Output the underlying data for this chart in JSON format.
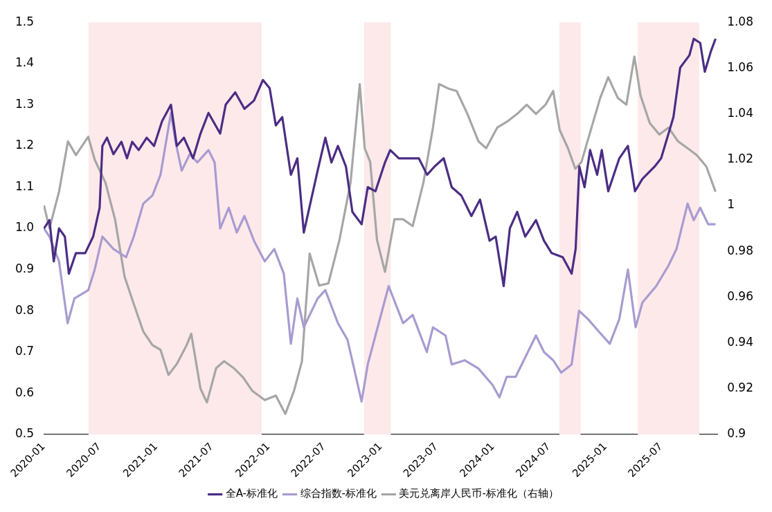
{
  "chart_data": {
    "type": "line",
    "xlim": [
      "2020-01-01",
      "2025-12-31"
    ],
    "xticks": [
      "2020-01",
      "2020-07",
      "2021-01",
      "2021-07",
      "2022-01",
      "2022-07",
      "2023-01",
      "2023-07",
      "2024-01",
      "2024-07",
      "2025-01",
      "2025-07"
    ],
    "ylim": [
      0.5,
      1.5
    ],
    "yticks": [
      0.5,
      0.6,
      0.7,
      0.8,
      0.9,
      {
        "value": 1,
        "label": "1.0"
      },
      1.1,
      1.2,
      1.3,
      1.4,
      1.5
    ],
    "y2lim": [
      0.9,
      1.08
    ],
    "y2ticks": [
      0.9,
      0.92,
      0.94,
      0.96,
      0.98,
      1,
      1.02,
      1.04,
      1.06,
      1.08
    ],
    "grid": false,
    "legend": "bottom",
    "bands": [
      {
        "axis": "x",
        "from": "2020-05-26",
        "to": "2021-12-10",
        "color": "#fde9ea"
      },
      {
        "axis": "x",
        "from": "2022-11-08",
        "to": "2023-02-03",
        "color": "#fde9ea"
      },
      {
        "axis": "x",
        "from": "2024-08-04",
        "to": "2024-10-12",
        "color": "#fde9ea"
      },
      {
        "axis": "x",
        "from": "2025-04-16",
        "to": "2025-11-02",
        "color": "#fde9ea"
      }
    ],
    "series": [
      {
        "name": "全A-标准化",
        "color": "#4b2d84",
        "x": [
          "2020-01-02",
          "2020-01-20",
          "2020-02-03",
          "2020-02-20",
          "2020-03-10",
          "2020-03-23",
          "2020-04-15",
          "2020-05-15",
          "2020-06-10",
          "2020-07-01",
          "2020-07-10",
          "2020-07-25",
          "2020-08-15",
          "2020-09-10",
          "2020-09-28",
          "2020-10-15",
          "2020-11-05",
          "2020-12-01",
          "2020-12-25",
          "2021-01-20",
          "2021-02-18",
          "2021-03-09",
          "2021-04-01",
          "2021-05-01",
          "2021-05-25",
          "2021-06-20",
          "2021-07-28",
          "2021-08-15",
          "2021-09-15",
          "2021-10-15",
          "2021-11-15",
          "2021-12-14",
          "2022-01-05",
          "2022-01-25",
          "2022-02-15",
          "2022-03-15",
          "2022-04-05",
          "2022-04-26",
          "2022-05-20",
          "2022-06-10",
          "2022-07-05",
          "2022-07-25",
          "2022-08-15",
          "2022-09-10",
          "2022-10-01",
          "2022-10-31",
          "2022-11-20",
          "2022-12-15",
          "2023-01-15",
          "2023-02-01",
          "2023-03-01",
          "2023-04-01",
          "2023-05-05",
          "2023-06-01",
          "2023-06-25",
          "2023-07-25",
          "2023-08-20",
          "2023-09-20",
          "2023-10-23",
          "2023-11-20",
          "2023-12-21",
          "2024-01-10",
          "2024-02-05",
          "2024-02-25",
          "2024-03-20",
          "2024-04-15",
          "2024-05-20",
          "2024-06-15",
          "2024-07-10",
          "2024-08-15",
          "2024-09-13",
          "2024-09-26",
          "2024-10-08",
          "2024-10-25",
          "2024-11-12",
          "2024-12-05",
          "2024-12-20",
          "2025-01-10",
          "2025-02-15",
          "2025-03-15",
          "2025-04-07",
          "2025-05-01",
          "2025-06-10",
          "2025-07-01",
          "2025-08-10",
          "2025-09-01",
          "2025-10-01",
          "2025-10-15",
          "2025-11-05",
          "2025-11-20",
          "2025-12-10",
          "2025-12-25"
        ],
        "values": [
          1.0,
          1.02,
          0.92,
          1.0,
          0.98,
          0.89,
          0.94,
          0.94,
          0.98,
          1.05,
          1.2,
          1.22,
          1.18,
          1.21,
          1.17,
          1.21,
          1.19,
          1.22,
          1.2,
          1.26,
          1.3,
          1.2,
          1.22,
          1.17,
          1.23,
          1.28,
          1.23,
          1.3,
          1.33,
          1.29,
          1.31,
          1.36,
          1.34,
          1.25,
          1.27,
          1.13,
          1.17,
          0.99,
          1.07,
          1.14,
          1.22,
          1.16,
          1.2,
          1.15,
          1.04,
          1.01,
          1.1,
          1.09,
          1.16,
          1.19,
          1.17,
          1.17,
          1.17,
          1.13,
          1.15,
          1.17,
          1.1,
          1.08,
          1.03,
          1.07,
          0.97,
          0.98,
          0.86,
          1.0,
          1.04,
          0.98,
          1.02,
          0.97,
          0.94,
          0.93,
          0.89,
          0.95,
          1.15,
          1.1,
          1.19,
          1.13,
          1.19,
          1.09,
          1.17,
          1.2,
          1.09,
          1.12,
          1.15,
          1.17,
          1.27,
          1.39,
          1.42,
          1.46,
          1.45,
          1.38,
          1.43,
          1.46
        ]
      },
      {
        "name": "综合指数-标准化",
        "color": "#a89bd0",
        "x": [
          "2020-01-02",
          "2020-01-20",
          "2020-02-20",
          "2020-03-19",
          "2020-04-10",
          "2020-05-25",
          "2020-06-15",
          "2020-07-10",
          "2020-08-15",
          "2020-09-25",
          "2020-10-20",
          "2020-11-20",
          "2020-12-20",
          "2021-01-15",
          "2021-02-18",
          "2021-03-05",
          "2021-03-25",
          "2021-04-20",
          "2021-05-15",
          "2021-06-20",
          "2021-07-10",
          "2021-07-28",
          "2021-08-25",
          "2021-09-20",
          "2021-10-15",
          "2021-11-15",
          "2021-12-20",
          "2022-01-20",
          "2022-02-20",
          "2022-03-15",
          "2022-04-05",
          "2022-04-26",
          "2022-06-10",
          "2022-07-05",
          "2022-08-15",
          "2022-09-15",
          "2022-10-31",
          "2022-11-20",
          "2022-12-15",
          "2023-01-27",
          "2023-03-15",
          "2023-04-15",
          "2023-05-31",
          "2023-06-20",
          "2023-07-31",
          "2023-08-20",
          "2023-10-01",
          "2023-11-15",
          "2023-12-31",
          "2024-01-22",
          "2024-02-15",
          "2024-03-15",
          "2024-05-20",
          "2024-06-15",
          "2024-07-15",
          "2024-08-10",
          "2024-09-13",
          "2024-10-07",
          "2024-11-05",
          "2024-12-10",
          "2025-01-15",
          "2025-02-15",
          "2025-03-15",
          "2025-04-09",
          "2025-05-01",
          "2025-06-15",
          "2025-07-25",
          "2025-08-20",
          "2025-09-25",
          "2025-10-15",
          "2025-11-05",
          "2025-12-01",
          "2025-12-25"
        ],
        "values": [
          1.0,
          0.98,
          0.92,
          0.77,
          0.83,
          0.85,
          0.9,
          0.98,
          0.95,
          0.93,
          0.98,
          1.06,
          1.08,
          1.13,
          1.28,
          1.21,
          1.14,
          1.18,
          1.16,
          1.19,
          1.16,
          1.0,
          1.05,
          0.99,
          1.03,
          0.97,
          0.92,
          0.95,
          0.89,
          0.72,
          0.83,
          0.76,
          0.83,
          0.85,
          0.77,
          0.73,
          0.58,
          0.67,
          0.74,
          0.86,
          0.77,
          0.79,
          0.7,
          0.76,
          0.74,
          0.67,
          0.68,
          0.66,
          0.62,
          0.59,
          0.64,
          0.64,
          0.74,
          0.7,
          0.68,
          0.65,
          0.67,
          0.8,
          0.78,
          0.75,
          0.72,
          0.78,
          0.9,
          0.76,
          0.82,
          0.86,
          0.91,
          0.95,
          1.06,
          1.02,
          1.05,
          1.01,
          1.01
        ]
      },
      {
        "name": "美元兑离岸人民币-标准化（右轴）",
        "color": "#a6a6a6",
        "axis": "y2",
        "x": [
          "2020-01-02",
          "2020-01-20",
          "2020-02-20",
          "2020-03-20",
          "2020-04-15",
          "2020-05-25",
          "2020-06-15",
          "2020-07-20",
          "2020-08-20",
          "2020-09-20",
          "2020-10-20",
          "2020-11-20",
          "2020-12-20",
          "2021-01-15",
          "2021-02-10",
          "2021-03-10",
          "2021-04-10",
          "2021-04-25",
          "2021-05-25",
          "2021-06-15",
          "2021-07-15",
          "2021-08-10",
          "2021-09-10",
          "2021-10-10",
          "2021-11-10",
          "2021-12-20",
          "2022-01-25",
          "2022-02-25",
          "2022-03-25",
          "2022-04-20",
          "2022-05-15",
          "2022-06-15",
          "2022-07-15",
          "2022-08-20",
          "2022-09-25",
          "2022-10-25",
          "2022-11-10",
          "2022-11-28",
          "2022-12-20",
          "2023-01-15",
          "2023-02-15",
          "2023-03-15",
          "2023-04-15",
          "2023-05-20",
          "2023-06-20",
          "2023-07-10",
          "2023-08-10",
          "2023-09-05",
          "2023-10-10",
          "2023-11-15",
          "2023-12-10",
          "2024-01-15",
          "2024-02-20",
          "2024-03-20",
          "2024-04-20",
          "2024-05-20",
          "2024-06-20",
          "2024-07-15",
          "2024-08-05",
          "2024-09-01",
          "2024-09-25",
          "2024-10-15",
          "2024-11-10",
          "2024-12-15",
          "2025-01-10",
          "2025-02-10",
          "2025-03-10",
          "2025-04-05",
          "2025-04-25",
          "2025-05-25",
          "2025-06-25",
          "2025-07-25",
          "2025-08-25",
          "2025-09-25",
          "2025-10-25",
          "2025-11-25",
          "2025-12-25"
        ],
        "values": [
          1.0,
          0.99,
          1.006,
          1.028,
          1.022,
          1.03,
          1.02,
          1.01,
          0.994,
          0.969,
          0.957,
          0.945,
          0.939,
          0.937,
          0.926,
          0.931,
          0.939,
          0.944,
          0.92,
          0.914,
          0.929,
          0.932,
          0.929,
          0.925,
          0.919,
          0.915,
          0.917,
          0.909,
          0.919,
          0.932,
          0.979,
          0.965,
          0.966,
          0.985,
          1.01,
          1.053,
          1.025,
          1.019,
          0.985,
          0.971,
          0.994,
          0.994,
          0.991,
          1.01,
          1.034,
          1.053,
          1.051,
          1.05,
          1.04,
          1.028,
          1.025,
          1.034,
          1.037,
          1.04,
          1.044,
          1.04,
          1.044,
          1.05,
          1.033,
          1.025,
          1.016,
          1.019,
          1.031,
          1.047,
          1.056,
          1.047,
          1.044,
          1.065,
          1.048,
          1.036,
          1.031,
          1.034,
          1.028,
          1.025,
          1.022,
          1.017,
          1.006
        ]
      }
    ]
  }
}
